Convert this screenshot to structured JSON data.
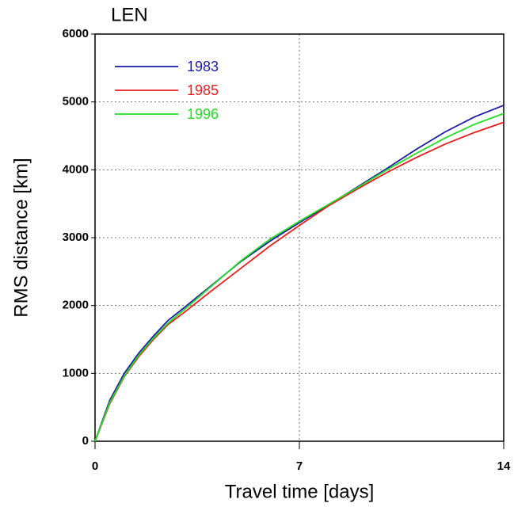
{
  "chart_data": {
    "type": "line",
    "title": "LEN",
    "x_label": "Travel time [days]",
    "y_label": "RMS distance [km]",
    "x": [
      0,
      0.5,
      1,
      1.5,
      2,
      2.5,
      3,
      4,
      5,
      6,
      7,
      8,
      9,
      10,
      11,
      12,
      13,
      14
    ],
    "series": [
      {
        "name": "1983",
        "color": "#1a1aa8",
        "values": [
          0,
          600,
          1000,
          1300,
          1550,
          1780,
          1950,
          2300,
          2650,
          2950,
          3220,
          3480,
          3750,
          4020,
          4300,
          4560,
          4780,
          4950
        ]
      },
      {
        "name": "1985",
        "color": "#ee1c1c",
        "values": [
          0,
          550,
          950,
          1250,
          1500,
          1720,
          1880,
          2220,
          2550,
          2880,
          3180,
          3470,
          3720,
          3960,
          4180,
          4380,
          4550,
          4700
        ]
      },
      {
        "name": "1996",
        "color": "#22dd22",
        "values": [
          0,
          570,
          960,
          1270,
          1520,
          1740,
          1920,
          2290,
          2660,
          2980,
          3240,
          3490,
          3740,
          4000,
          4240,
          4470,
          4670,
          4830
        ]
      }
    ],
    "xlim": [
      0,
      14
    ],
    "xticks": [
      0,
      7,
      14
    ],
    "ylim": [
      0,
      6000
    ],
    "yticks": [
      0,
      1000,
      2000,
      3000,
      4000,
      5000,
      6000
    ],
    "grid": true,
    "legend": "upper-left"
  }
}
